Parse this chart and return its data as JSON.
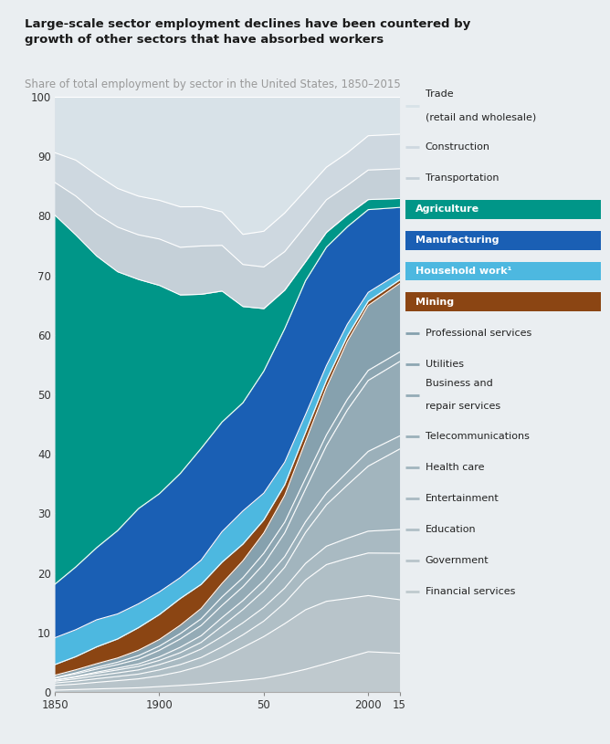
{
  "title": "Large-scale sector employment declines have been countered by\ngrowth of other sectors that have absorbed workers",
  "subtitle": "Share of total employment by sector in the United States, 1850–2015",
  "years": [
    1850,
    1860,
    1870,
    1880,
    1890,
    1900,
    1910,
    1920,
    1930,
    1940,
    1950,
    1960,
    1970,
    1980,
    1990,
    2000,
    2015
  ],
  "sectors_bottom_to_top": [
    "Financial services",
    "Government",
    "Education",
    "Entertainment",
    "Health care",
    "Telecommunications",
    "Business and repair services",
    "Utilities",
    "Professional services",
    "Mining",
    "Household work",
    "Manufacturing",
    "Agriculture",
    "Transportation",
    "Construction",
    "Trade (retail and wholesale)"
  ],
  "sector_colors": {
    "Financial services": "#bfc9ce",
    "Government": "#b8c4ca",
    "Education": "#b0bfc6",
    "Entertainment": "#a9bac2",
    "Health care": "#a2b5be",
    "Telecommunications": "#9bb0ba",
    "Business and repair services": "#94abb6",
    "Utilities": "#8da6b2",
    "Professional services": "#86a1ae",
    "Mining": "#8B4513",
    "Household work": "#4db8e0",
    "Manufacturing": "#1a5fb4",
    "Agriculture": "#009688",
    "Transportation": "#c5d0d8",
    "Construction": "#ced8e0",
    "Trade (retail and wholesale)": "#d8e2e8"
  },
  "data": {
    "Financial services": [
      0.3,
      0.4,
      0.5,
      0.6,
      0.7,
      0.9,
      1.1,
      1.3,
      1.6,
      1.9,
      2.3,
      3.0,
      3.8,
      4.8,
      5.8,
      6.8,
      6.5
    ],
    "Government": [
      0.8,
      0.9,
      1.1,
      1.3,
      1.5,
      1.8,
      2.3,
      3.0,
      4.0,
      5.5,
      7.0,
      8.5,
      10.0,
      10.5,
      10.0,
      9.5,
      9.0
    ],
    "Education": [
      0.4,
      0.5,
      0.6,
      0.7,
      0.8,
      1.0,
      1.2,
      1.4,
      1.8,
      2.1,
      2.6,
      3.5,
      5.0,
      6.2,
      6.8,
      7.2,
      7.8
    ],
    "Entertainment": [
      0.3,
      0.4,
      0.5,
      0.6,
      0.7,
      0.9,
      1.1,
      1.4,
      1.7,
      2.0,
      2.3,
      2.5,
      2.8,
      3.1,
      3.4,
      3.7,
      4.0
    ],
    "Health care": [
      0.2,
      0.3,
      0.4,
      0.5,
      0.6,
      0.7,
      0.9,
      1.1,
      1.7,
      2.2,
      2.8,
      3.5,
      5.2,
      7.0,
      9.0,
      11.0,
      13.5
    ],
    "Telecommunications": [
      0.0,
      0.1,
      0.2,
      0.3,
      0.4,
      0.6,
      0.9,
      1.1,
      1.4,
      1.5,
      1.7,
      1.8,
      1.8,
      2.0,
      2.2,
      2.5,
      2.2
    ],
    "Business and repair services": [
      0.3,
      0.4,
      0.5,
      0.6,
      0.8,
      1.1,
      1.4,
      1.7,
      2.0,
      2.3,
      2.8,
      4.0,
      5.5,
      8.0,
      10.5,
      12.0,
      12.5
    ],
    "Utilities": [
      0.1,
      0.2,
      0.3,
      0.4,
      0.6,
      0.7,
      0.9,
      1.1,
      1.4,
      1.5,
      1.8,
      1.8,
      1.8,
      1.8,
      1.8,
      1.7,
      1.6
    ],
    "Professional services": [
      0.4,
      0.5,
      0.6,
      0.7,
      0.9,
      1.1,
      1.4,
      1.7,
      2.2,
      2.8,
      3.4,
      4.5,
      6.2,
      8.0,
      9.8,
      11.0,
      11.5
    ],
    "Mining": [
      1.8,
      2.2,
      2.8,
      3.2,
      3.8,
      4.2,
      4.5,
      4.0,
      3.5,
      2.8,
      2.2,
      1.8,
      1.5,
      1.2,
      0.9,
      0.7,
      0.6
    ],
    "Household work": [
      4.5,
      4.5,
      4.5,
      4.2,
      4.0,
      3.8,
      3.5,
      4.0,
      5.0,
      5.5,
      4.5,
      3.8,
      3.0,
      2.5,
      2.0,
      1.5,
      1.2
    ],
    "Manufacturing": [
      9.0,
      10.5,
      12.0,
      14.0,
      16.0,
      16.5,
      17.5,
      18.5,
      18.0,
      18.0,
      20.5,
      22.5,
      22.5,
      20.0,
      16.5,
      14.0,
      11.0
    ],
    "Agriculture": [
      62.0,
      55.5,
      48.5,
      43.5,
      38.5,
      35.0,
      30.0,
      25.5,
      21.5,
      16.0,
      10.5,
      6.5,
      3.2,
      2.5,
      2.0,
      1.7,
      1.5
    ],
    "Transportation": [
      5.5,
      6.5,
      7.0,
      7.5,
      7.5,
      7.8,
      8.0,
      8.0,
      7.5,
      7.0,
      7.0,
      6.5,
      6.0,
      5.5,
      5.0,
      5.0,
      5.0
    ],
    "Construction": [
      5.0,
      6.0,
      6.5,
      6.5,
      6.5,
      6.5,
      6.8,
      6.5,
      5.5,
      5.0,
      6.0,
      6.5,
      6.0,
      5.5,
      5.5,
      5.8,
      5.8
    ],
    "Trade (retail and wholesale)": [
      9.4,
      10.6,
      13.0,
      15.4,
      16.7,
      17.4,
      18.5,
      18.2,
      18.9,
      22.9,
      22.6,
      19.6,
      15.7,
      11.9,
      9.5,
      6.6,
      6.3
    ]
  },
  "background_color": "#eaeef1",
  "plot_bg_color": "#dce2e8",
  "xlabel_ticks": [
    1850,
    1900,
    1950,
    2000,
    2015
  ],
  "xlabel_labels": [
    "1850",
    "1900",
    "50",
    "2000",
    "15"
  ],
  "yticks": [
    0,
    10,
    20,
    30,
    40,
    50,
    60,
    70,
    80,
    90,
    100
  ],
  "legend_order": [
    "Trade (retail and wholesale)",
    "Construction",
    "Transportation",
    "Agriculture",
    "Manufacturing",
    "Household work",
    "Mining",
    "Professional services",
    "Utilities",
    "Business and repair services",
    "Telecommunications",
    "Health care",
    "Entertainment",
    "Education",
    "Government",
    "Financial services"
  ],
  "legend_labels": {
    "Trade (retail and wholesale)": "Trade\n(retail and wholesale)",
    "Construction": "Construction",
    "Transportation": "Transportation",
    "Agriculture": "Agriculture",
    "Manufacturing": "Manufacturing",
    "Household work": "Household work¹",
    "Mining": "Mining",
    "Professional services": "Professional services",
    "Utilities": "Utilities",
    "Business and repair services": "Business and\nrepair services",
    "Telecommunications": "Telecommunications",
    "Health care": "Health care",
    "Entertainment": "Entertainment",
    "Education": "Education",
    "Government": "Government",
    "Financial services": "Financial services"
  },
  "highlighted": [
    "Agriculture",
    "Manufacturing",
    "Household work",
    "Mining"
  ]
}
